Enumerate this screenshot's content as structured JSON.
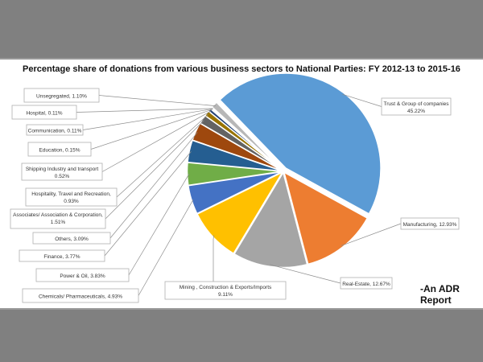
{
  "chart_data": {
    "type": "pie",
    "title": "Percentage share of donations from various business sectors to National Parties: FY 2012-13 to 2015-16",
    "unit": "%",
    "slices": [
      {
        "label": "Trust & Group of companies",
        "value": 45.22,
        "display": "45.22%",
        "color": "#5B9BD5"
      },
      {
        "label": "Manufacturing",
        "value": 12.93,
        "display": "12.93%",
        "color": "#ED7D31"
      },
      {
        "label": "Real-Estate",
        "value": 12.67,
        "display": "12.67%",
        "color": "#A5A5A5"
      },
      {
        "label": "Mining , Construction & Exports/Imports",
        "value": 9.11,
        "display": "9.11%",
        "color": "#FFC000"
      },
      {
        "label": "Chemicals/ Pharmaceuticals",
        "value": 4.93,
        "display": "4.93%",
        "color": "#4472C4"
      },
      {
        "label": "Power & Oil",
        "value": 3.83,
        "display": "3.83%",
        "color": "#70AD47"
      },
      {
        "label": "Finance",
        "value": 3.77,
        "display": "3.77%",
        "color": "#255E91"
      },
      {
        "label": "Others",
        "value": 3.09,
        "display": "3.09%",
        "color": "#9E480E"
      },
      {
        "label": "Associates/ Association & Corporation",
        "value": 1.51,
        "display": "1.51%",
        "color": "#636363"
      },
      {
        "label": "Hospitality, Travel and Recreation",
        "value": 0.93,
        "display": "0.93%",
        "color": "#997300"
      },
      {
        "label": "Shipping Industry and transport",
        "value": 0.52,
        "display": "0.52%",
        "color": "#264478"
      },
      {
        "label": "Education",
        "value": 0.15,
        "display": "0.15%",
        "color": "#43682B"
      },
      {
        "label": "Communication",
        "value": 0.11,
        "display": "0.11%",
        "color": "#698ED0"
      },
      {
        "label": "Hospital",
        "value": 0.11,
        "display": "0.11%",
        "color": "#F1975A"
      },
      {
        "label": "Unsegregated",
        "value": 1.1,
        "display": "1.10%",
        "color": "#B7B7B7"
      }
    ],
    "legend": "none (callout data labels)"
  },
  "credit": "-An ADR Report"
}
